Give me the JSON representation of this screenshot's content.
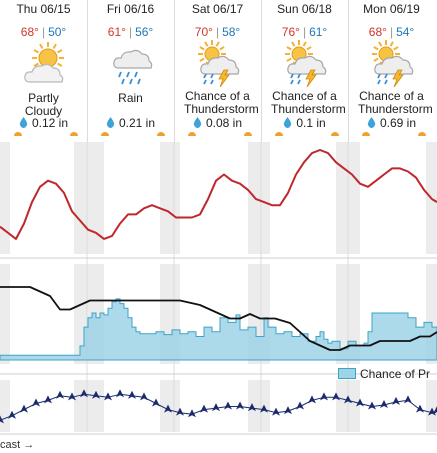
{
  "days": [
    {
      "name": "Thu 06/15",
      "hi": "68°",
      "lo": "50°",
      "condition": "Partly Cloudy",
      "precip": "0.12 in",
      "icon": "partly-cloudy-icon"
    },
    {
      "name": "Fri 06/16",
      "hi": "61°",
      "lo": "56°",
      "condition": "Rain",
      "precip": "0.21 in",
      "icon": "rain-icon"
    },
    {
      "name": "Sat 06/17",
      "hi": "70°",
      "lo": "58°",
      "condition": "Chance of a Thunderstorm",
      "precip": "0.08 in",
      "icon": "thunderstorm-icon"
    },
    {
      "name": "Sun 06/18",
      "hi": "76°",
      "lo": "61°",
      "condition": "Chance of a Thunderstorm",
      "precip": "0.1 in",
      "icon": "thunderstorm-icon"
    },
    {
      "name": "Mon 06/19",
      "hi": "68°",
      "lo": "54°",
      "condition": "Chance of a Thunderstorm",
      "precip": "0.69 in",
      "icon": "thunderstorm-icon"
    }
  ],
  "legend": {
    "precip_chance": "Chance of Pr"
  },
  "bottom_link": "cast →",
  "colors": {
    "temp_line": "#c0272d",
    "dew_line": "#111111",
    "precip_fill": "#9fd3e6",
    "precip_stroke": "#3aa4c8",
    "wind": "#1a2a6c",
    "night_band": "#ececec",
    "sun": "#f0a030",
    "hi": "#d0352b",
    "lo": "#1f77b4"
  },
  "chart_data": {
    "type": "line",
    "x_range": [
      0,
      437
    ],
    "series": [
      {
        "key": "temperature",
        "y_range": [
          50,
          80
        ],
        "points": [
          [
            0,
            55
          ],
          [
            8,
            53
          ],
          [
            16,
            51
          ],
          [
            24,
            56
          ],
          [
            32,
            63
          ],
          [
            40,
            68
          ],
          [
            48,
            70
          ],
          [
            56,
            69
          ],
          [
            64,
            66
          ],
          [
            72,
            60
          ],
          [
            80,
            57
          ],
          [
            88,
            54
          ],
          [
            96,
            53
          ],
          [
            104,
            51
          ],
          [
            112,
            52
          ],
          [
            120,
            56
          ],
          [
            128,
            59
          ],
          [
            136,
            59
          ],
          [
            144,
            61
          ],
          [
            152,
            62
          ],
          [
            160,
            61
          ],
          [
            168,
            60
          ],
          [
            176,
            58
          ],
          [
            184,
            58
          ],
          [
            192,
            58
          ],
          [
            200,
            59
          ],
          [
            208,
            64
          ],
          [
            216,
            70
          ],
          [
            224,
            72
          ],
          [
            232,
            70
          ],
          [
            240,
            69
          ],
          [
            248,
            67
          ],
          [
            256,
            64
          ],
          [
            264,
            63
          ],
          [
            272,
            62
          ],
          [
            280,
            62
          ],
          [
            288,
            66
          ],
          [
            296,
            72
          ],
          [
            304,
            76
          ],
          [
            312,
            79
          ],
          [
            320,
            80
          ],
          [
            328,
            79
          ],
          [
            336,
            76
          ],
          [
            344,
            74
          ],
          [
            352,
            72
          ],
          [
            360,
            69
          ],
          [
            368,
            68
          ],
          [
            376,
            70
          ],
          [
            384,
            72
          ],
          [
            392,
            74
          ],
          [
            400,
            74
          ],
          [
            408,
            73
          ],
          [
            416,
            71
          ],
          [
            424,
            67
          ],
          [
            432,
            64
          ],
          [
            437,
            63
          ]
        ]
      },
      {
        "key": "dew_point",
        "y_range": [
          44,
          64
        ],
        "points": [
          [
            0,
            60
          ],
          [
            20,
            60
          ],
          [
            30,
            60
          ],
          [
            40,
            59
          ],
          [
            50,
            58
          ],
          [
            60,
            55
          ],
          [
            70,
            55
          ],
          [
            80,
            56
          ],
          [
            90,
            57
          ],
          [
            100,
            57
          ],
          [
            120,
            57
          ],
          [
            140,
            57
          ],
          [
            160,
            57
          ],
          [
            180,
            57
          ],
          [
            200,
            56
          ],
          [
            210,
            55
          ],
          [
            220,
            54
          ],
          [
            230,
            53
          ],
          [
            240,
            53
          ],
          [
            250,
            54
          ],
          [
            260,
            53
          ],
          [
            275,
            53
          ],
          [
            290,
            52
          ],
          [
            300,
            50
          ],
          [
            310,
            48
          ],
          [
            320,
            47
          ],
          [
            330,
            46
          ],
          [
            340,
            46
          ],
          [
            350,
            47
          ],
          [
            360,
            47
          ],
          [
            370,
            47
          ],
          [
            380,
            48
          ],
          [
            390,
            48
          ],
          [
            400,
            48
          ],
          [
            410,
            48
          ],
          [
            420,
            49
          ],
          [
            430,
            49
          ],
          [
            437,
            50
          ]
        ]
      },
      {
        "key": "precip_chance",
        "y_range": [
          0,
          100
        ],
        "points": [
          [
            0,
            5
          ],
          [
            20,
            5
          ],
          [
            40,
            5
          ],
          [
            60,
            5
          ],
          [
            76,
            5
          ],
          [
            80,
            15
          ],
          [
            84,
            35
          ],
          [
            88,
            45
          ],
          [
            92,
            50
          ],
          [
            96,
            45
          ],
          [
            100,
            50
          ],
          [
            104,
            48
          ],
          [
            108,
            55
          ],
          [
            112,
            62
          ],
          [
            116,
            65
          ],
          [
            120,
            60
          ],
          [
            124,
            55
          ],
          [
            128,
            45
          ],
          [
            132,
            35
          ],
          [
            136,
            30
          ],
          [
            140,
            28
          ],
          [
            148,
            28
          ],
          [
            156,
            30
          ],
          [
            164,
            27
          ],
          [
            172,
            32
          ],
          [
            180,
            28
          ],
          [
            188,
            30
          ],
          [
            196,
            25
          ],
          [
            204,
            35
          ],
          [
            212,
            30
          ],
          [
            220,
            45
          ],
          [
            228,
            40
          ],
          [
            236,
            48
          ],
          [
            240,
            32
          ],
          [
            248,
            35
          ],
          [
            256,
            25
          ],
          [
            264,
            45
          ],
          [
            268,
            35
          ],
          [
            276,
            28
          ],
          [
            284,
            30
          ],
          [
            292,
            25
          ],
          [
            300,
            28
          ],
          [
            308,
            20
          ],
          [
            316,
            25
          ],
          [
            320,
            30
          ],
          [
            324,
            22
          ],
          [
            328,
            18
          ],
          [
            332,
            20
          ],
          [
            340,
            12
          ],
          [
            348,
            20
          ],
          [
            356,
            15
          ],
          [
            364,
            18
          ],
          [
            368,
            30
          ],
          [
            372,
            50
          ],
          [
            380,
            50
          ],
          [
            390,
            50
          ],
          [
            400,
            50
          ],
          [
            408,
            45
          ],
          [
            416,
            35
          ],
          [
            424,
            40
          ],
          [
            432,
            35
          ],
          [
            437,
            30
          ]
        ]
      },
      {
        "key": "wind_speed",
        "y_range": [
          0,
          30
        ],
        "points": [
          [
            0,
            5
          ],
          [
            12,
            8
          ],
          [
            24,
            12
          ],
          [
            36,
            16
          ],
          [
            48,
            18
          ],
          [
            60,
            21
          ],
          [
            72,
            20
          ],
          [
            84,
            22
          ],
          [
            96,
            21
          ],
          [
            108,
            20
          ],
          [
            120,
            22
          ],
          [
            132,
            21
          ],
          [
            144,
            20
          ],
          [
            156,
            16
          ],
          [
            168,
            12
          ],
          [
            180,
            10
          ],
          [
            192,
            9
          ],
          [
            204,
            12
          ],
          [
            216,
            13
          ],
          [
            228,
            14
          ],
          [
            240,
            14
          ],
          [
            252,
            13
          ],
          [
            264,
            12
          ],
          [
            276,
            10
          ],
          [
            288,
            11
          ],
          [
            300,
            14
          ],
          [
            312,
            18
          ],
          [
            324,
            20
          ],
          [
            336,
            20
          ],
          [
            348,
            18
          ],
          [
            360,
            16
          ],
          [
            372,
            14
          ],
          [
            384,
            15
          ],
          [
            396,
            17
          ],
          [
            408,
            18
          ],
          [
            420,
            12
          ],
          [
            432,
            10
          ],
          [
            437,
            11
          ]
        ]
      }
    ]
  }
}
